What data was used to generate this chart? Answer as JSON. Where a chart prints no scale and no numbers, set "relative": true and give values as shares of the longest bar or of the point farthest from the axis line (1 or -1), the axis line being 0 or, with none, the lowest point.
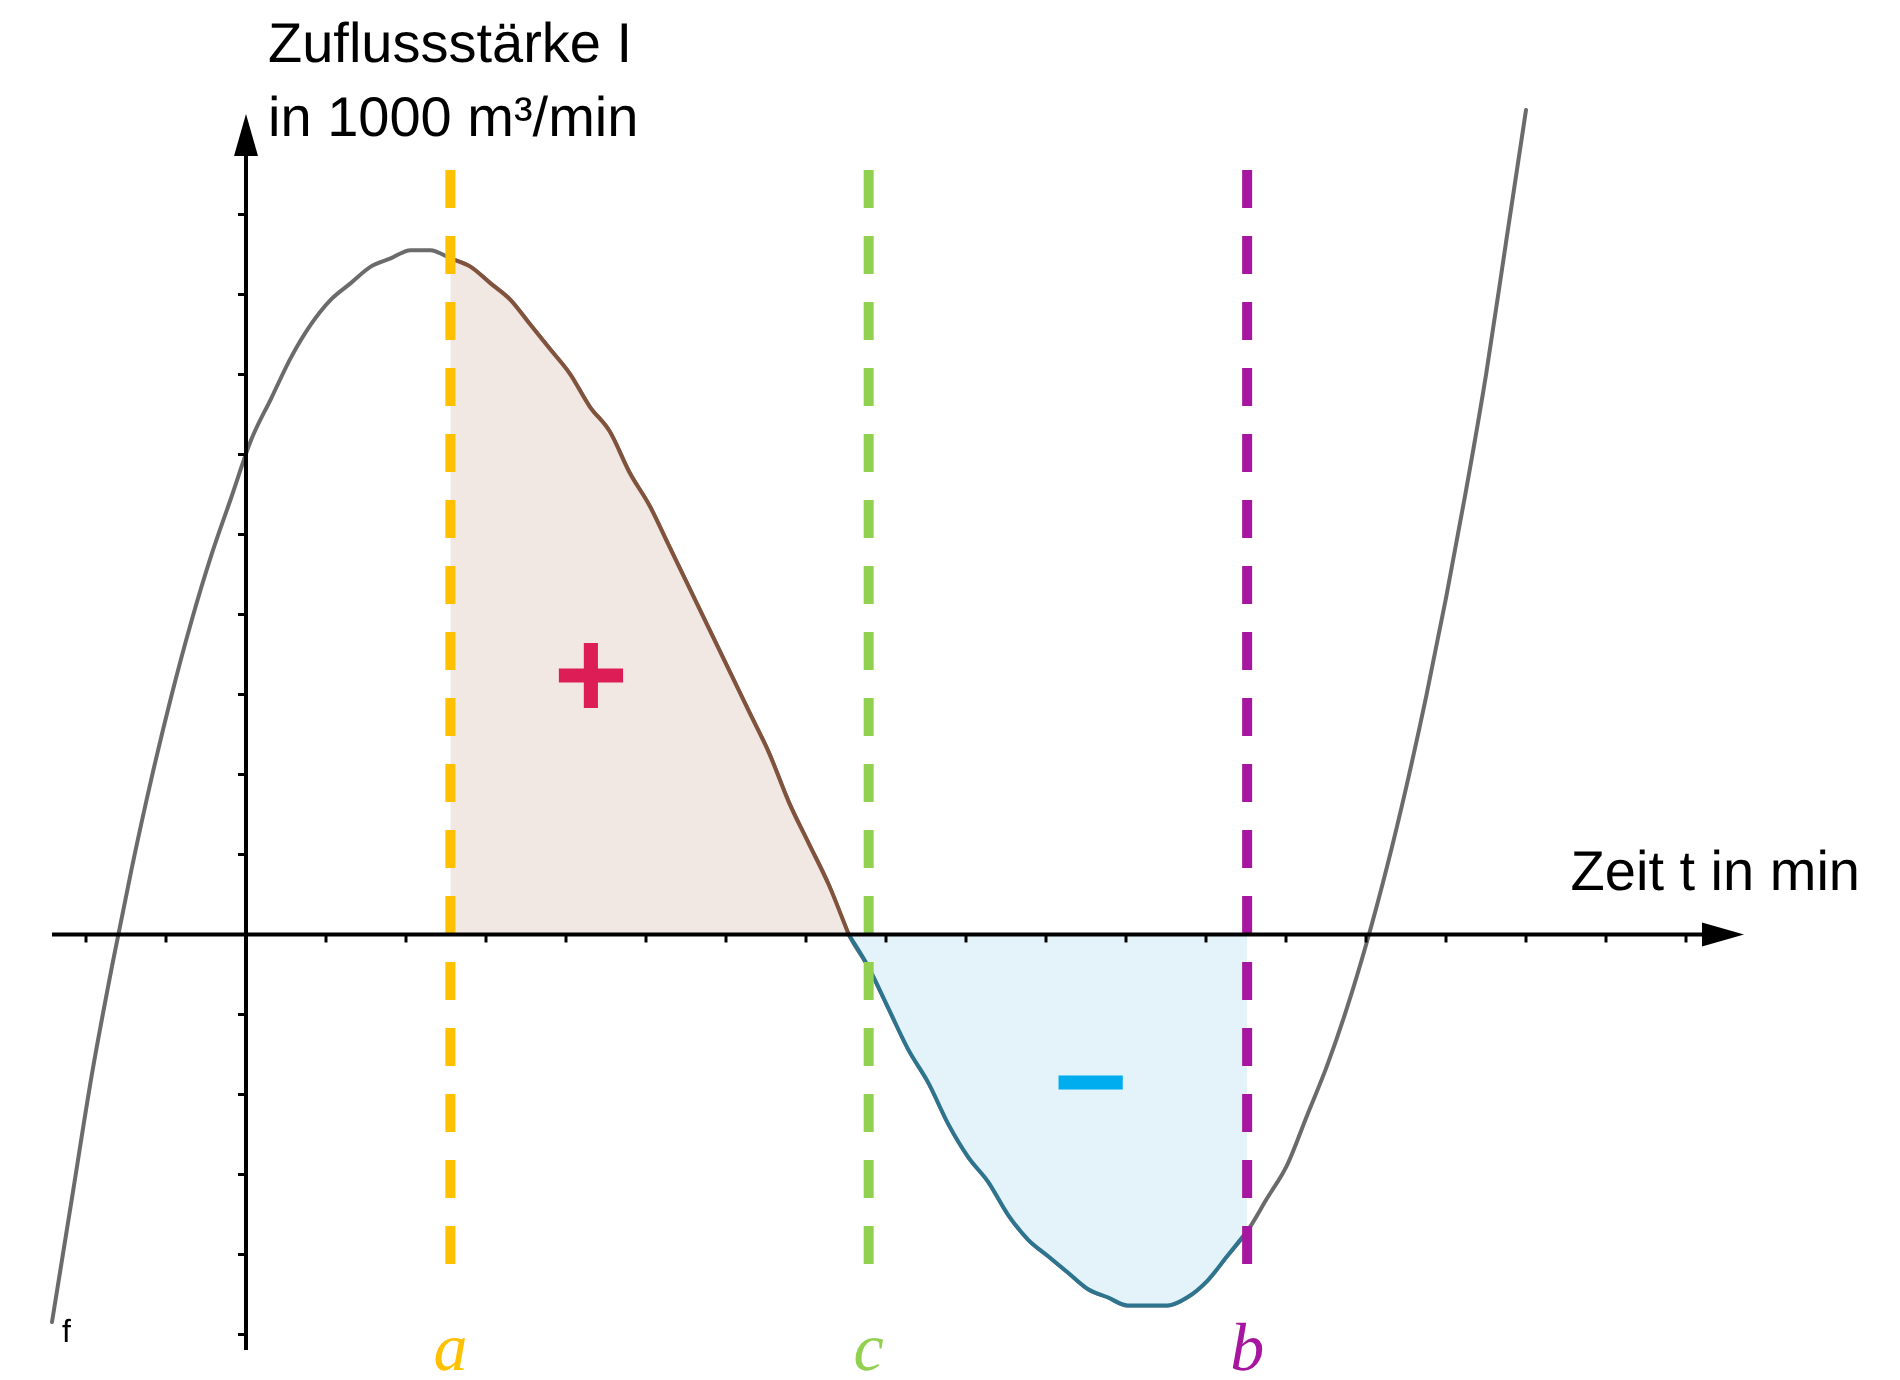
{
  "chart_data": {
    "type": "line",
    "relative": true,
    "tick_labels": "x",
    "xlabel": "Zeit t in min",
    "ylabel": "Zuflussstärke I in 1000 m³/min",
    "categories": [
      null,
      null,
      null,
      null,
      null,
      null,
      null,
      null,
      null,
      null,
      null,
      null,
      null,
      null,
      null,
      null,
      null,
      null,
      null,
      null,
      "a",
      null,
      null,
      null,
      null,
      null,
      null,
      null,
      null,
      null,
      null,
      null,
      null,
      null,
      null,
      null,
      null,
      null,
      null,
      null,
      null,
      "c",
      null,
      null,
      null,
      null,
      null,
      null,
      null,
      null,
      null,
      null,
      null,
      null,
      null,
      null,
      null,
      null,
      null,
      null,
      "b",
      null,
      null,
      null,
      null,
      null,
      null,
      null,
      null,
      null,
      null,
      null,
      null,
      null,
      null
    ],
    "series": [
      {
        "name": "f",
        "color": "#6b6b6b",
        "values": [
          -0.47,
          -0.32,
          -0.17,
          -0.04,
          0.08,
          0.19,
          0.29,
          0.38,
          0.46,
          0.53,
          0.6,
          0.65,
          0.7,
          0.74,
          0.77,
          0.79,
          0.81,
          0.82,
          0.83,
          0.83,
          0.82,
          0.81,
          0.79,
          0.77,
          0.74,
          0.71,
          0.68,
          0.64,
          0.61,
          0.56,
          0.52,
          0.47,
          0.42,
          0.37,
          0.32,
          0.27,
          0.22,
          0.16,
          0.11,
          0.06,
          0,
          -0.04,
          -0.09,
          -0.14,
          -0.18,
          -0.23,
          -0.27,
          -0.3,
          -0.34,
          -0.37,
          -0.39,
          -0.41,
          -0.43,
          -0.44,
          -0.45,
          -0.45,
          -0.45,
          -0.44,
          -0.42,
          -0.39,
          -0.36,
          -0.32,
          -0.28,
          -0.22,
          -0.16,
          -0.09,
          -0.01,
          0.08,
          0.18,
          0.29,
          0.41,
          0.54,
          0.68,
          0.84,
          1
        ]
      },
      {
        "type": "area",
        "color": "#f2e8e3",
        "values": [
          null,
          null,
          null,
          null,
          null,
          null,
          null,
          null,
          null,
          null,
          null,
          null,
          null,
          null,
          null,
          null,
          null,
          null,
          null,
          null,
          0.82,
          0.81,
          0.79,
          0.77,
          0.74,
          0.71,
          0.68,
          0.64,
          0.61,
          0.56,
          0.52,
          0.47,
          0.42,
          0.37,
          0.32,
          0.27,
          0.22,
          0.16,
          0.11,
          0.06,
          0,
          null,
          null,
          null,
          null,
          null,
          null,
          null,
          null,
          null,
          null,
          null,
          null,
          null,
          null,
          null,
          null,
          null,
          null,
          null,
          null,
          null,
          null,
          null,
          null,
          null,
          null,
          null,
          null,
          null,
          null,
          null,
          null,
          null,
          null
        ]
      },
      {
        "type": "area",
        "color": "#e3f3f9",
        "values": [
          null,
          null,
          null,
          null,
          null,
          null,
          null,
          null,
          null,
          null,
          null,
          null,
          null,
          null,
          null,
          null,
          null,
          null,
          null,
          null,
          null,
          null,
          null,
          null,
          null,
          null,
          null,
          null,
          null,
          null,
          null,
          null,
          null,
          null,
          null,
          null,
          null,
          null,
          null,
          null,
          0,
          -0.04,
          -0.09,
          -0.14,
          -0.18,
          -0.23,
          -0.27,
          -0.3,
          -0.34,
          -0.37,
          -0.39,
          -0.41,
          -0.43,
          -0.44,
          -0.45,
          -0.45,
          -0.45,
          -0.44,
          -0.42,
          -0.39,
          -0.36,
          null,
          null,
          null,
          null,
          null,
          null,
          null,
          null,
          null,
          null,
          null,
          null,
          null,
          null
        ]
      }
    ],
    "ref_lines": [
      {
        "axis": "x",
        "value": "a",
        "color": "#ffc000",
        "line_style": "dashed"
      },
      {
        "axis": "x",
        "value": "c",
        "color": "#92d050",
        "line_style": "dashed"
      },
      {
        "axis": "x",
        "value": "b",
        "color": "#a6169e",
        "line_style": "dashed"
      }
    ],
    "annotations": [
      "+",
      "−"
    ]
  }
}
